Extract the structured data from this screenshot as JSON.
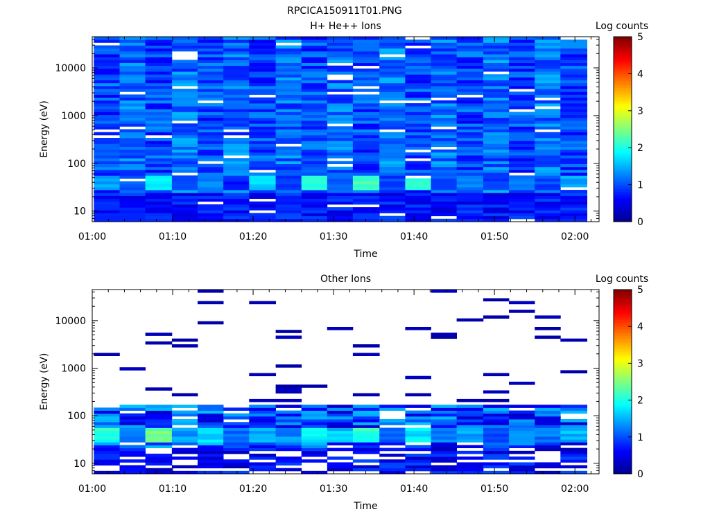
{
  "figure_title": "RPCICA150911T01.PNG",
  "colorbar_label": "Log counts",
  "colormap": [
    "#00008f",
    "#0000ff",
    "#0080ff",
    "#00ffff",
    "#80ff80",
    "#ffff00",
    "#ff8000",
    "#ff0000",
    "#800000"
  ],
  "chart_data": [
    {
      "type": "heatmap",
      "title": "H+ He++ Ions",
      "xlabel": "Time",
      "ylabel": "Energy (eV)",
      "x_ticks": [
        "01:00",
        "01:10",
        "01:20",
        "01:30",
        "01:40",
        "01:50",
        "02:00"
      ],
      "y_ticks": [
        "10",
        "100",
        "1000",
        "10000"
      ],
      "y_scale": "log",
      "ylim": [
        6,
        45000
      ],
      "xlim_minutes": [
        0,
        63
      ],
      "time_bins_minutes": [
        0.2,
        3.4,
        6.6,
        9.9,
        13.1,
        16.3,
        19.5,
        22.8,
        26.0,
        29.2,
        32.4,
        35.7,
        38.9,
        42.1,
        45.3,
        48.6,
        51.8,
        55.0,
        58.2,
        61.5
      ],
      "colorbar": {
        "label": "Log counts",
        "ticks": [
          "0",
          "1",
          "2",
          "3",
          "4",
          "5"
        ],
        "range": [
          0,
          5
        ]
      },
      "values_log_counts_description": "Mostly 0.5–1.5 across 10–40000 eV; peak ~2.0–2.4 near 30–50 eV",
      "peak_band_eV": [
        28,
        55
      ],
      "peak_values": [
        1.6,
        1.2,
        2.0,
        1.1,
        1.4,
        0.9,
        1.8,
        1.1,
        2.1,
        1.2,
        2.4,
        1.1,
        2.3,
        1.2,
        1.4,
        1.0,
        1.3,
        1.1,
        1.6
      ]
    },
    {
      "type": "heatmap",
      "title": "Other Ions",
      "xlabel": "Time",
      "ylabel": "Energy (eV)",
      "x_ticks": [
        "01:00",
        "01:10",
        "01:20",
        "01:30",
        "01:40",
        "01:50",
        "02:00"
      ],
      "y_ticks": [
        "10",
        "100",
        "1000",
        "10000"
      ],
      "y_scale": "log",
      "ylim": [
        6,
        45000
      ],
      "xlim_minutes": [
        0,
        63
      ],
      "time_bins_minutes": [
        0.2,
        3.4,
        6.6,
        9.9,
        13.1,
        16.3,
        19.5,
        22.8,
        26.0,
        29.2,
        32.4,
        35.7,
        38.9,
        42.1,
        45.3,
        48.6,
        51.8,
        55.0,
        58.2,
        61.5
      ],
      "colorbar": {
        "label": "Log counts",
        "ticks": [
          "0",
          "1",
          "2",
          "3",
          "4",
          "5"
        ],
        "range": [
          0,
          5
        ]
      },
      "values_log_counts_description": "Dense 0.5–2.5 below ~180 eV with peak ~2.3–2.6 near 30–50 eV; sparse 0.1–0.3 lines above",
      "peak_band_eV": [
        28,
        55
      ],
      "peak_values": [
        2.2,
        1.5,
        2.6,
        1.6,
        1.9,
        1.3,
        1.6,
        1.5,
        2.0,
        1.8,
        2.3,
        1.3,
        2.0,
        1.4,
        1.6,
        1.2,
        1.5,
        1.4,
        1.7
      ]
    }
  ]
}
